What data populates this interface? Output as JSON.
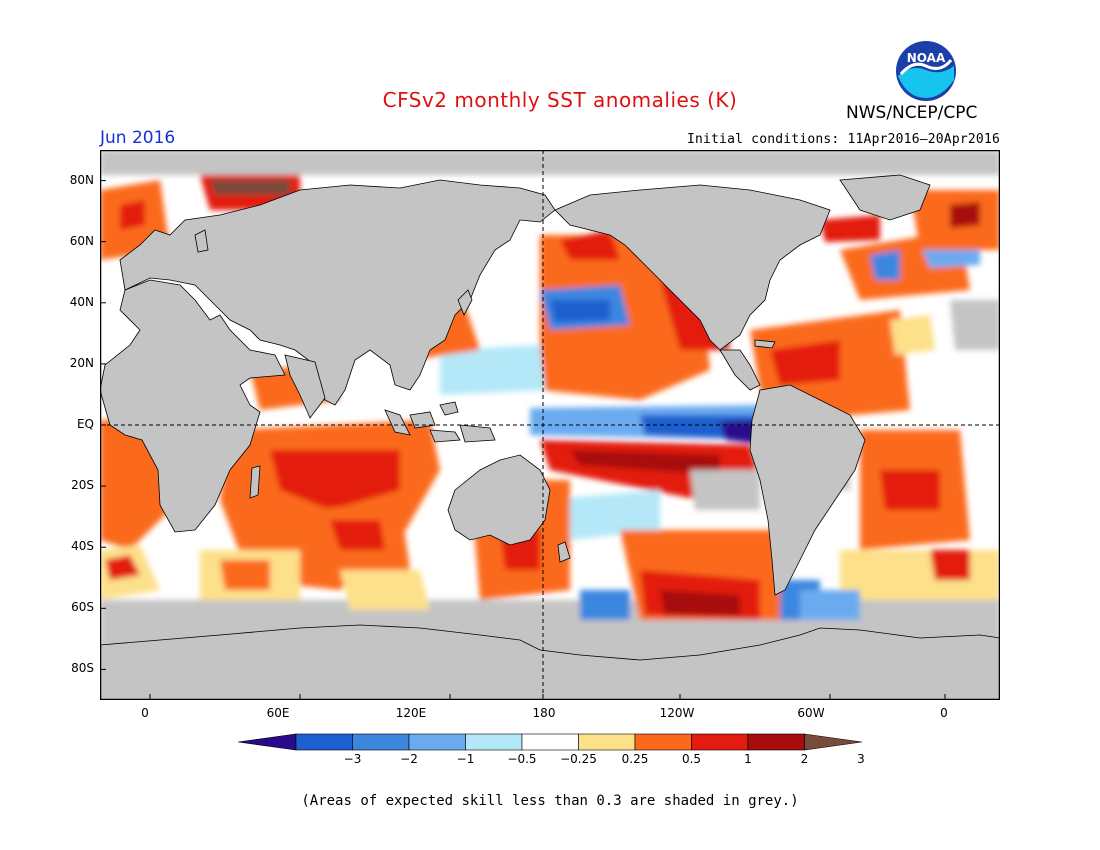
{
  "title": "CFSv2 monthly SST anomalies (K)",
  "agency": "NWS/NCEP/CPC",
  "logo_text": "NOAA",
  "month": "Jun 2016",
  "initial_conditions": "Initial conditions: 11Apr2016–20Apr2016",
  "lat_labels": [
    "80N",
    "60N",
    "40N",
    "20N",
    "EQ",
    "20S",
    "40S",
    "60S",
    "80S"
  ],
  "lon_labels": [
    "0",
    "60E",
    "120E",
    "180",
    "120W",
    "60W",
    "0"
  ],
  "colorbar": {
    "labels": [
      "−3",
      "−2",
      "−1",
      "−0.5",
      "−0.25",
      "0.25",
      "0.5",
      "1",
      "2",
      "3"
    ],
    "colors": [
      "#2a0a8c",
      "#1e5fcf",
      "#3b87e0",
      "#6aabf0",
      "#b4e8f8",
      "#ffffff",
      "#fde08a",
      "#fb6a1a",
      "#e31b10",
      "#a80d0d",
      "#7a4a3a"
    ]
  },
  "footnote": "(Areas of expected skill less than 0.3 are shaded in grey.)",
  "colors": {
    "land": "#c4c4c4",
    "ocean_neutral": "#ffffff",
    "title": "#e01010",
    "month": "#1530d8"
  }
}
